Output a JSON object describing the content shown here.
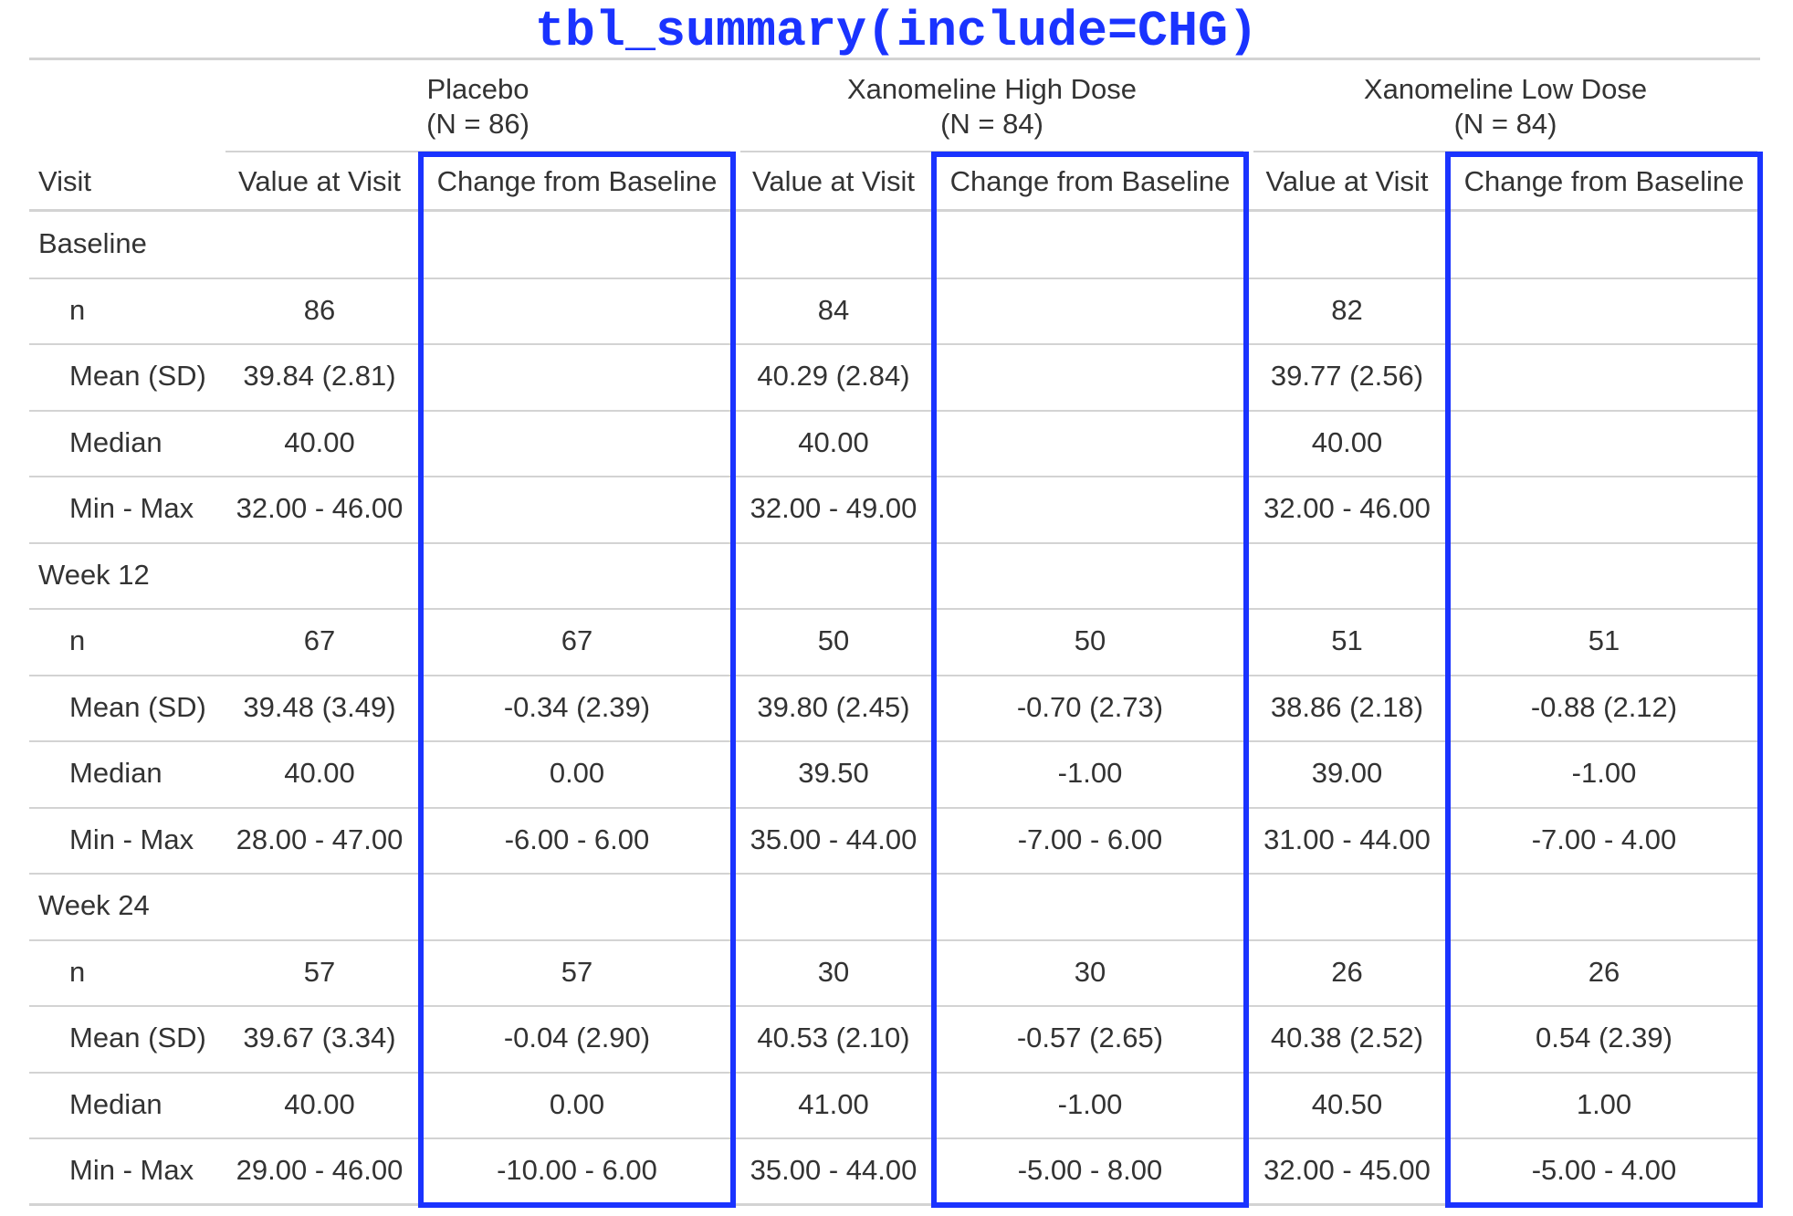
{
  "title": "tbl_summary(include=CHG)",
  "accent_color": "#1a33ff",
  "header": {
    "visit_label": "Visit",
    "arms": [
      {
        "name": "Placebo",
        "n_label": "(N = 86)"
      },
      {
        "name": "Xanomeline High Dose",
        "n_label": "(N = 84)"
      },
      {
        "name": "Xanomeline Low Dose",
        "n_label": "(N = 84)"
      }
    ],
    "subcolumns": [
      "Value at Visit",
      "Change from Baseline"
    ]
  },
  "rows": [
    {
      "type": "group",
      "label": "Baseline",
      "cells": [
        "",
        "",
        "",
        "",
        "",
        ""
      ]
    },
    {
      "type": "stat",
      "label": "n",
      "cells": [
        "86",
        "",
        "84",
        "",
        "82",
        ""
      ]
    },
    {
      "type": "stat",
      "label": "Mean (SD)",
      "cells": [
        "39.84 (2.81)",
        "",
        "40.29 (2.84)",
        "",
        "39.77 (2.56)",
        ""
      ]
    },
    {
      "type": "stat",
      "label": "Median",
      "cells": [
        "40.00",
        "",
        "40.00",
        "",
        "40.00",
        ""
      ]
    },
    {
      "type": "stat",
      "label": "Min - Max",
      "cells": [
        "32.00 - 46.00",
        "",
        "32.00 - 49.00",
        "",
        "32.00 - 46.00",
        ""
      ]
    },
    {
      "type": "group",
      "label": "Week 12",
      "cells": [
        "",
        "",
        "",
        "",
        "",
        ""
      ]
    },
    {
      "type": "stat",
      "label": "n",
      "cells": [
        "67",
        "67",
        "50",
        "50",
        "51",
        "51"
      ]
    },
    {
      "type": "stat",
      "label": "Mean (SD)",
      "cells": [
        "39.48 (3.49)",
        "-0.34 (2.39)",
        "39.80 (2.45)",
        "-0.70 (2.73)",
        "38.86 (2.18)",
        "-0.88 (2.12)"
      ]
    },
    {
      "type": "stat",
      "label": "Median",
      "cells": [
        "40.00",
        "0.00",
        "39.50",
        "-1.00",
        "39.00",
        "-1.00"
      ]
    },
    {
      "type": "stat",
      "label": "Min - Max",
      "cells": [
        "28.00 - 47.00",
        "-6.00 - 6.00",
        "35.00 - 44.00",
        "-7.00 - 6.00",
        "31.00 - 44.00",
        "-7.00 - 4.00"
      ]
    },
    {
      "type": "group",
      "label": "Week 24",
      "cells": [
        "",
        "",
        "",
        "",
        "",
        ""
      ]
    },
    {
      "type": "stat",
      "label": "n",
      "cells": [
        "57",
        "57",
        "30",
        "30",
        "26",
        "26"
      ]
    },
    {
      "type": "stat",
      "label": "Mean (SD)",
      "cells": [
        "39.67 (3.34)",
        "-0.04 (2.90)",
        "40.53 (2.10)",
        "-0.57 (2.65)",
        "40.38 (2.52)",
        "0.54 (2.39)"
      ]
    },
    {
      "type": "stat",
      "label": "Median",
      "cells": [
        "40.00",
        "0.00",
        "41.00",
        "-1.00",
        "40.50",
        "1.00"
      ]
    },
    {
      "type": "stat",
      "label": "Min - Max",
      "cells": [
        "29.00 - 46.00",
        "-10.00 - 6.00",
        "35.00 - 44.00",
        "-5.00 - 8.00",
        "32.00 - 45.00",
        "-5.00 - 4.00"
      ]
    }
  ]
}
